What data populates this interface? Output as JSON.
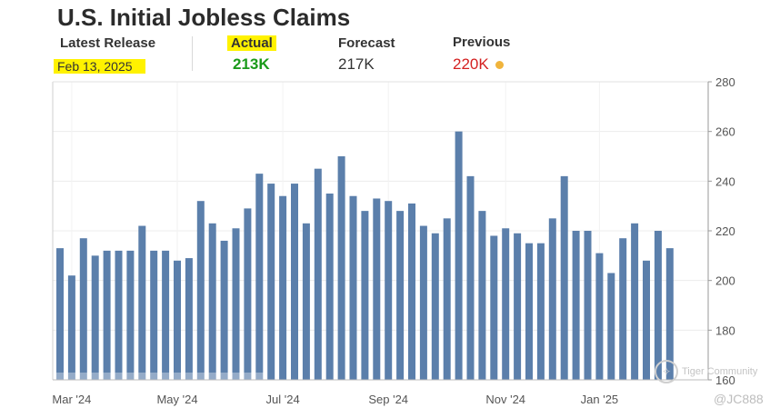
{
  "header": {
    "title": "U.S. Initial Jobless Claims",
    "latest_release_label": "Latest Release",
    "latest_release_value": "Feb 13, 2025",
    "actual_label": "Actual",
    "actual_value": "213K",
    "forecast_label": "Forecast",
    "forecast_value": "217K",
    "previous_label": "Previous",
    "previous_value": "220K"
  },
  "colors": {
    "bar": "#5b7fab",
    "actual": "#1a9a1a",
    "previous": "#d42020",
    "highlight": "#fff200",
    "indicator_dot": "#f0b43c"
  },
  "watermark": {
    "text": "Tiger Community",
    "handle": "@JC888"
  },
  "chart_data": {
    "type": "bar",
    "title": "U.S. Initial Jobless Claims",
    "xlabel": "",
    "ylabel": "",
    "ylim": [
      160,
      280
    ],
    "yticks": [
      160,
      180,
      200,
      220,
      240,
      260,
      280
    ],
    "y_axis_side": "right",
    "grid": true,
    "x_tick_labels": [
      "Mar '24",
      "May '24",
      "Jul '24",
      "Sep '24",
      "Nov '24",
      "Jan '25"
    ],
    "x_tick_bar_index": [
      1,
      10,
      19,
      28,
      38,
      46
    ],
    "values": [
      213,
      202,
      217,
      210,
      212,
      212,
      212,
      222,
      212,
      212,
      208,
      209,
      232,
      223,
      216,
      221,
      229,
      243,
      239,
      234,
      239,
      223,
      245,
      235,
      250,
      234,
      228,
      233,
      232,
      228,
      231,
      222,
      219,
      225,
      260,
      242,
      228,
      218,
      221,
      219,
      215,
      215,
      225,
      242,
      220,
      220,
      211,
      203,
      217,
      223,
      208,
      220,
      213
    ]
  }
}
